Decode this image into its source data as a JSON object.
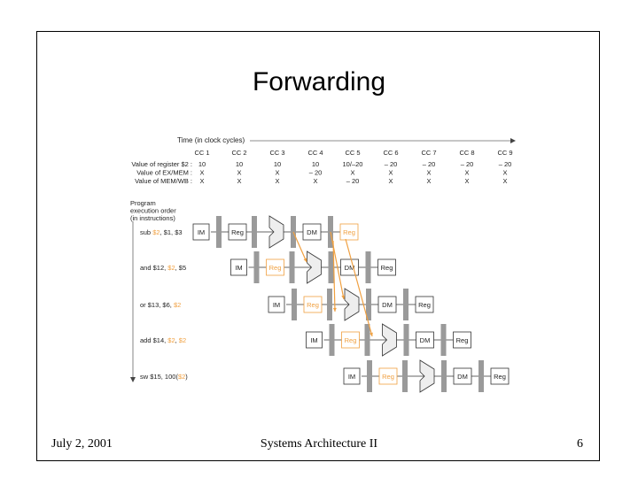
{
  "slide": {
    "title": "Forwarding",
    "footer_left": "July 2, 2001",
    "footer_center": "Systems Architecture II",
    "footer_right": "6"
  },
  "diagram": {
    "time_label": "Time (in clock cycles)",
    "cycles": [
      "CC 1",
      "CC 2",
      "CC 3",
      "CC 4",
      "CC 5",
      "CC 6",
      "CC 7",
      "CC 8",
      "CC 9"
    ],
    "value_rows": [
      {
        "label": "Value of register $2 :",
        "values": [
          "10",
          "10",
          "10",
          "10",
          "10/–20",
          "– 20",
          "– 20",
          "– 20",
          "– 20"
        ]
      },
      {
        "label": "Value of EX/MEM :",
        "values": [
          "X",
          "X",
          "X",
          "– 20",
          "X",
          "X",
          "X",
          "X",
          "X"
        ]
      },
      {
        "label": "Value of MEM/WB :",
        "values": [
          "X",
          "X",
          "X",
          "X",
          "– 20",
          "X",
          "X",
          "X",
          "X"
        ]
      }
    ],
    "order_label": [
      "Program",
      "execution order",
      "(in instructions)"
    ],
    "stage_labels": {
      "im": "IM",
      "reg": "Reg",
      "dm": "DM"
    },
    "instructions": [
      {
        "parts": [
          {
            "t": "sub ",
            "h": false
          },
          {
            "t": "$2",
            "h": true
          },
          {
            "t": ", $1, $3",
            "h": false
          }
        ]
      },
      {
        "parts": [
          {
            "t": "and $12, ",
            "h": false
          },
          {
            "t": "$2",
            "h": true
          },
          {
            "t": ", $5",
            "h": false
          }
        ]
      },
      {
        "parts": [
          {
            "t": "or $13, $6, ",
            "h": false
          },
          {
            "t": "$2",
            "h": true
          }
        ]
      },
      {
        "parts": [
          {
            "t": "add $14, ",
            "h": false
          },
          {
            "t": "$2",
            "h": true
          },
          {
            "t": ", ",
            "h": false
          },
          {
            "t": "$2",
            "h": true
          }
        ]
      },
      {
        "parts": [
          {
            "t": "sw $15, 100(",
            "h": false
          },
          {
            "t": "$2",
            "h": true
          },
          {
            "t": ")",
            "h": false
          }
        ]
      }
    ],
    "colors": {
      "highlight": "#f0a040",
      "line": "#333333",
      "register": "#9a9a9a",
      "text": "#222222"
    }
  }
}
